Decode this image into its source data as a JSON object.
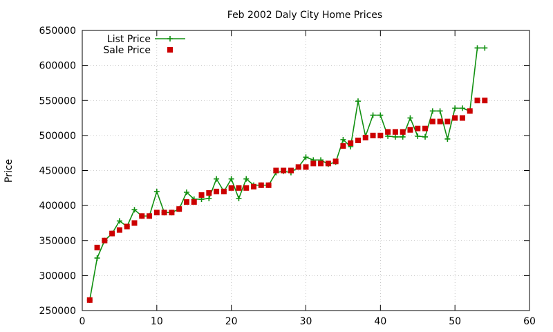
{
  "chart_data": {
    "type": "line",
    "title": "Feb 2002 Daly City Home Prices",
    "xlabel": "",
    "ylabel": "Price",
    "xlim": [
      0,
      60
    ],
    "ylim": [
      250000,
      650000
    ],
    "xticks": [
      "0",
      "10",
      "20",
      "30",
      "40",
      "50",
      "60"
    ],
    "yticks": [
      "250000",
      "300000",
      "350000",
      "400000",
      "450000",
      "500000",
      "550000",
      "600000",
      "650000"
    ],
    "grid": true,
    "legend_position": "top-left",
    "x": [
      1,
      2,
      3,
      4,
      5,
      6,
      7,
      8,
      9,
      10,
      11,
      12,
      13,
      14,
      15,
      16,
      17,
      18,
      19,
      20,
      21,
      22,
      23,
      24,
      25,
      26,
      27,
      28,
      29,
      30,
      31,
      32,
      33,
      34,
      35,
      36,
      37,
      38,
      39,
      40,
      41,
      42,
      43,
      44,
      45,
      46,
      47,
      48,
      49,
      50,
      51,
      52,
      53,
      54
    ],
    "series": [
      {
        "name": "List Price",
        "style": "linespoints",
        "color": "#109010",
        "values": [
          265000,
          325000,
          350000,
          360000,
          378000,
          370000,
          394000,
          385000,
          385000,
          420000,
          390000,
          390000,
          395000,
          419000,
          409000,
          409000,
          410000,
          438000,
          420000,
          438000,
          410000,
          438000,
          429000,
          429000,
          429000,
          447000,
          449000,
          447000,
          455000,
          469000,
          465000,
          465000,
          459000,
          462000,
          494000,
          484000,
          549000,
          499000,
          529000,
          529000,
          499000,
          498000,
          498000,
          525000,
          499000,
          498000,
          535000,
          535000,
          495000,
          539000,
          539000,
          535000,
          625000,
          625000
        ]
      },
      {
        "name": "Sale Price",
        "style": "points",
        "color": "#cc0000",
        "values": [
          265000,
          340000,
          350000,
          360000,
          365000,
          370000,
          375000,
          385000,
          385000,
          390000,
          390000,
          390000,
          395000,
          405000,
          405000,
          415000,
          418000,
          420000,
          420000,
          425000,
          425000,
          425000,
          427000,
          429000,
          429000,
          450000,
          450000,
          450000,
          455000,
          455000,
          460000,
          460000,
          460000,
          463000,
          485000,
          489000,
          493000,
          497000,
          500000,
          500000,
          505000,
          505000,
          505000,
          508000,
          510000,
          510000,
          520000,
          520000,
          520000,
          525000,
          525000,
          535000,
          550000,
          550000
        ]
      }
    ]
  }
}
